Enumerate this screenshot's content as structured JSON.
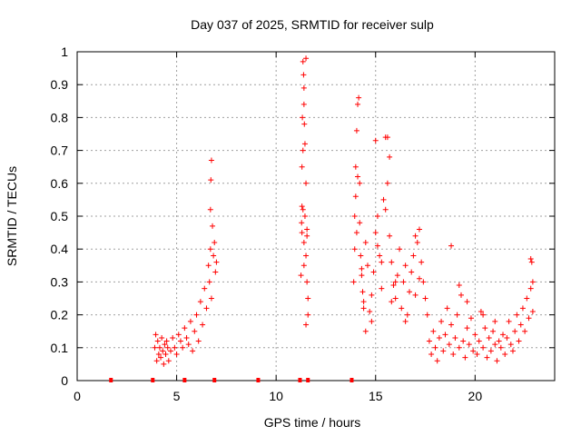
{
  "chart_data": {
    "type": "scatter",
    "title": "Day 037 of 2025, SRMTID for receiver sulp",
    "xlabel": "GPS time / hours",
    "ylabel": "SRMTID / TECUs",
    "xlim": [
      0,
      24
    ],
    "ylim": [
      0,
      1
    ],
    "grid": true,
    "marker": "plus",
    "color": "#ff0000",
    "xticks": [
      0,
      5,
      10,
      15,
      20
    ],
    "xtick_labels": [
      "0",
      "5",
      "10",
      "15",
      "20"
    ],
    "yticks": [
      0,
      0.1,
      0.2,
      0.3,
      0.4,
      0.5,
      0.6,
      0.7,
      0.8,
      0.9,
      1
    ],
    "ytick_labels": [
      "0",
      "0.1",
      "0.2",
      "0.3",
      "0.4",
      "0.5",
      "0.6",
      "0.7",
      "0.8",
      "0.9",
      "1"
    ],
    "zero_markers_x": [
      1.7,
      3.8,
      5.4,
      6.9,
      9.1,
      11.2,
      11.6,
      13.8
    ],
    "series": [
      {
        "name": "SRMTID",
        "x": [
          3.9,
          3.95,
          4.0,
          4.05,
          4.1,
          4.15,
          4.2,
          4.25,
          4.3,
          4.35,
          4.4,
          4.45,
          4.5,
          4.55,
          4.6,
          4.7,
          4.8,
          4.9,
          5.0,
          5.1,
          5.2,
          5.3,
          5.4,
          5.5,
          5.6,
          5.7,
          5.8,
          5.9,
          6.0,
          6.1,
          6.2,
          6.3,
          6.4,
          6.5,
          6.6,
          6.65,
          6.7,
          6.75,
          6.8,
          6.85,
          6.9,
          6.95,
          7.0,
          6.72,
          6.75,
          6.7,
          11.25,
          11.28,
          11.3,
          11.32,
          11.35,
          11.38,
          11.4,
          11.42,
          11.45,
          11.5,
          11.3,
          11.35,
          11.4,
          11.45,
          11.5,
          11.55,
          11.6,
          11.3,
          11.35,
          11.4,
          11.5,
          11.55,
          11.6,
          11.4,
          11.5,
          11.55,
          13.9,
          13.95,
          14.0,
          14.05,
          14.1,
          14.15,
          14.2,
          14.25,
          14.3,
          14.35,
          14.4,
          14.5,
          14.6,
          14.7,
          14.8,
          14.9,
          15.0,
          15.1,
          15.2,
          15.3,
          15.4,
          15.5,
          15.6,
          15.7,
          15.8,
          15.9,
          16.0,
          16.1,
          16.2,
          16.3,
          16.4,
          16.5,
          16.6,
          16.7,
          16.8,
          16.9,
          17.0,
          17.1,
          17.2,
          17.3,
          17.4,
          17.5,
          17.6,
          13.95,
          14.0,
          14.05,
          14.1,
          14.2,
          14.3,
          14.4,
          15.0,
          15.1,
          15.5,
          15.6,
          15.7,
          16.0,
          14.5,
          14.8,
          15.3,
          15.8,
          16.5,
          17.0,
          17.2,
          17.7,
          17.8,
          17.9,
          18.0,
          18.1,
          18.2,
          18.3,
          18.4,
          18.5,
          18.6,
          18.7,
          18.8,
          18.9,
          19.0,
          19.1,
          19.2,
          19.3,
          19.4,
          19.5,
          19.6,
          19.7,
          19.8,
          19.9,
          20.0,
          20.1,
          20.2,
          20.3,
          20.4,
          20.5,
          20.6,
          20.7,
          20.8,
          20.9,
          21.0,
          21.1,
          21.2,
          21.3,
          21.4,
          21.5,
          21.6,
          21.7,
          21.8,
          21.9,
          22.0,
          22.1,
          22.2,
          22.3,
          22.4,
          22.5,
          22.6,
          22.7,
          22.8,
          22.9,
          18.8,
          19.2,
          19.6,
          20.4,
          21.0,
          22.8,
          22.85,
          22.9
        ],
        "y": [
          0.1,
          0.14,
          0.06,
          0.12,
          0.08,
          0.1,
          0.07,
          0.13,
          0.09,
          0.05,
          0.11,
          0.08,
          0.12,
          0.1,
          0.06,
          0.09,
          0.13,
          0.1,
          0.08,
          0.14,
          0.12,
          0.1,
          0.16,
          0.13,
          0.11,
          0.18,
          0.09,
          0.15,
          0.2,
          0.12,
          0.24,
          0.17,
          0.28,
          0.22,
          0.35,
          0.3,
          0.4,
          0.25,
          0.47,
          0.38,
          0.42,
          0.33,
          0.36,
          0.61,
          0.67,
          0.52,
          0.32,
          0.48,
          0.65,
          0.8,
          0.97,
          0.93,
          0.89,
          0.78,
          0.72,
          0.6,
          0.45,
          0.52,
          0.42,
          0.5,
          0.38,
          0.3,
          0.25,
          0.53,
          0.7,
          0.84,
          0.98,
          0.46,
          0.2,
          0.35,
          0.17,
          0.44,
          0.3,
          0.5,
          0.65,
          0.76,
          0.84,
          0.86,
          0.6,
          0.38,
          0.32,
          0.27,
          0.24,
          0.42,
          0.35,
          0.21,
          0.18,
          0.33,
          0.45,
          0.5,
          0.38,
          0.28,
          0.55,
          0.74,
          0.6,
          0.44,
          0.36,
          0.29,
          0.25,
          0.32,
          0.4,
          0.22,
          0.3,
          0.35,
          0.2,
          0.27,
          0.33,
          0.38,
          0.26,
          0.42,
          0.46,
          0.36,
          0.3,
          0.25,
          0.2,
          0.4,
          0.56,
          0.45,
          0.62,
          0.48,
          0.34,
          0.22,
          0.73,
          0.41,
          0.52,
          0.74,
          0.68,
          0.3,
          0.15,
          0.26,
          0.36,
          0.24,
          0.18,
          0.44,
          0.31,
          0.12,
          0.08,
          0.15,
          0.1,
          0.06,
          0.13,
          0.18,
          0.09,
          0.14,
          0.22,
          0.11,
          0.17,
          0.08,
          0.13,
          0.2,
          0.1,
          0.26,
          0.12,
          0.07,
          0.16,
          0.11,
          0.19,
          0.09,
          0.14,
          0.08,
          0.12,
          0.21,
          0.1,
          0.16,
          0.07,
          0.13,
          0.09,
          0.15,
          0.11,
          0.06,
          0.12,
          0.1,
          0.14,
          0.08,
          0.13,
          0.18,
          0.11,
          0.09,
          0.15,
          0.2,
          0.12,
          0.17,
          0.22,
          0.15,
          0.25,
          0.19,
          0.28,
          0.21,
          0.41,
          0.29,
          0.24,
          0.2,
          0.18,
          0.37,
          0.36,
          0.3
        ]
      }
    ]
  }
}
